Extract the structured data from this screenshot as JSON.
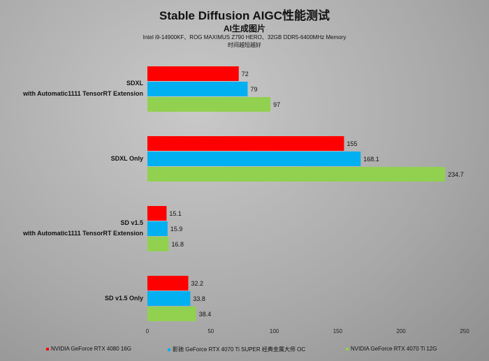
{
  "chart_data": {
    "type": "bar",
    "orientation": "horizontal",
    "title": "Stable Diffusion AIGC性能测试",
    "subtitle": "AI生成图片",
    "notes": [
      "Intel i9-14900KF、ROG MAXIMUS Z790 HERO、32GB DDR5-6400MHz Memory",
      "时间越短越好"
    ],
    "categories": [
      [
        "SDXL",
        "with Automatic1111 TensorRT Extension"
      ],
      [
        "SDXL Only"
      ],
      [
        "SD v1.5",
        "with Automatic1111 TensorRT Extension"
      ],
      [
        "SD v1.5 Only"
      ]
    ],
    "series": [
      {
        "name": "NVIDIA GeForce RTX 4080 16G",
        "color": "#ff0000",
        "values": [
          72,
          155,
          15.1,
          32.2
        ]
      },
      {
        "name": "影驰 GeForce RTX 4070 Ti SUPER 经典金属大师 OC",
        "color": "#00b0f0",
        "values": [
          79,
          168.1,
          15.9,
          33.8
        ]
      },
      {
        "name": "NVIDIA GeForce RTX 4070 Ti 12G",
        "color": "#92d050",
        "values": [
          97,
          234.7,
          16.8,
          38.4
        ]
      }
    ],
    "xlim": [
      0,
      250
    ],
    "xticks": [
      0,
      50,
      100,
      150,
      200,
      250
    ],
    "grid": false,
    "legend": "bottom"
  }
}
